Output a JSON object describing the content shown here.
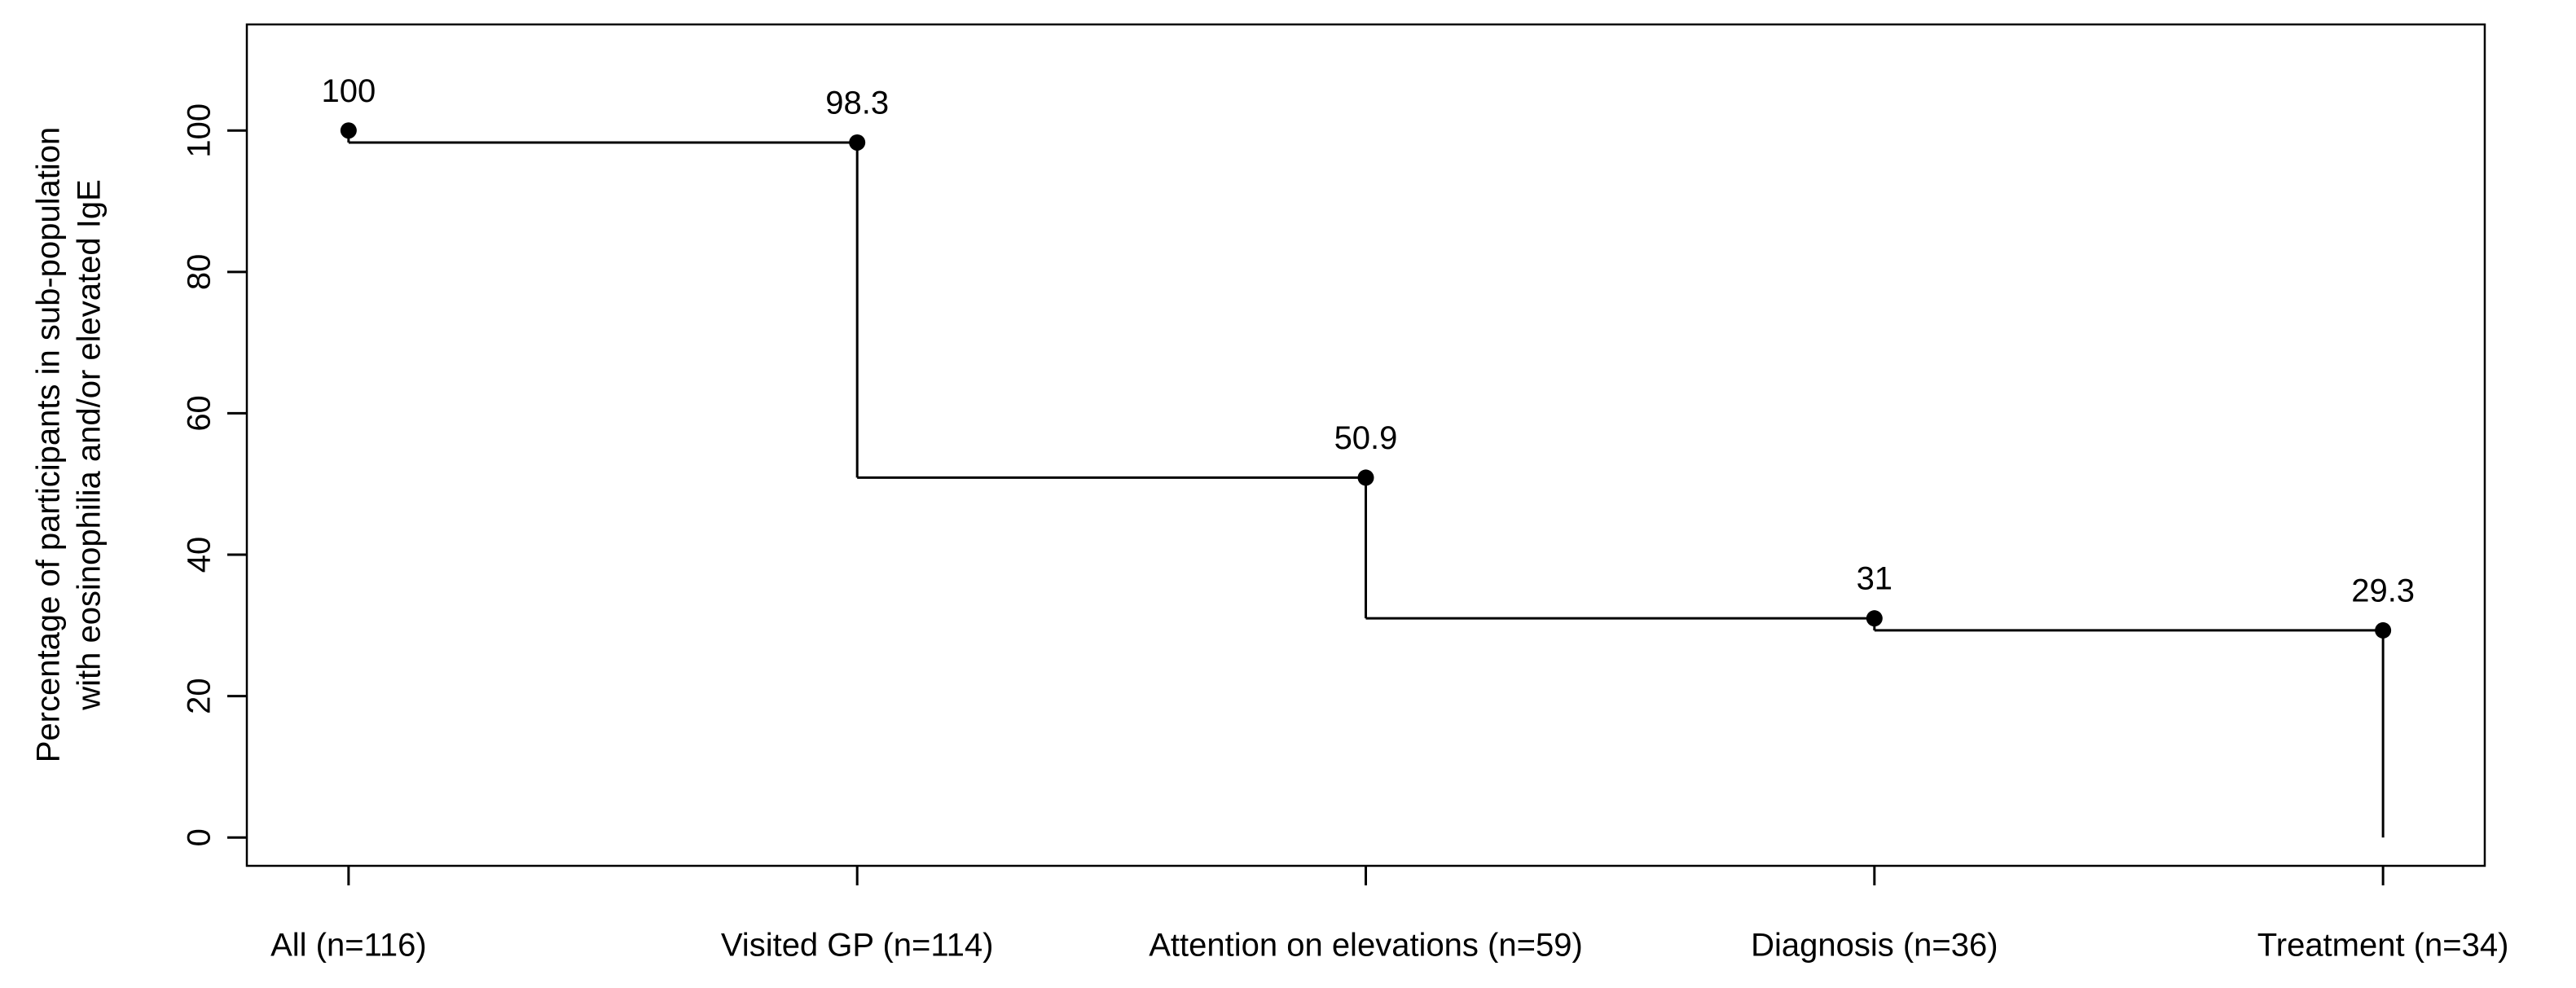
{
  "chart_data": {
    "type": "step",
    "ylabel": [
      "Percentage of participants in sub-population",
      "with eosinophilia and/or elevated IgE"
    ],
    "categories": [
      "All (n=116)",
      "Visited GP (n=114)",
      "Attention on elevations (n=59)",
      "Diagnosis (n=36)",
      "Treatment (n=34)"
    ],
    "values": [
      100,
      98.3,
      50.9,
      31,
      29.3
    ],
    "color": "#000000",
    "ylim": [
      -4,
      115
    ],
    "yticks": [
      0,
      20,
      40,
      60,
      80,
      100
    ],
    "grid": false
  }
}
